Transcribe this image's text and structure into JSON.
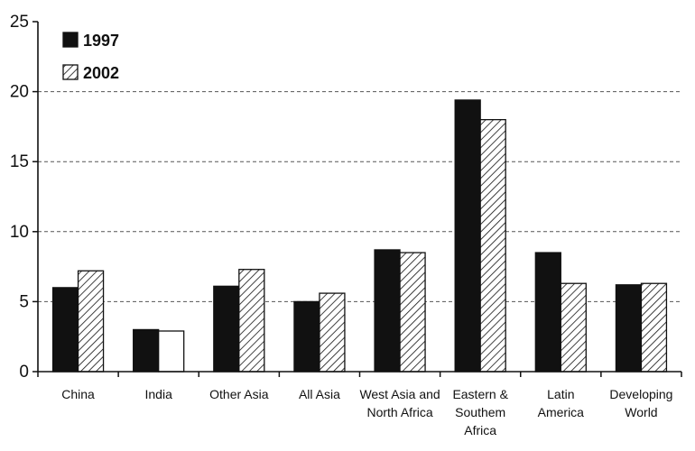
{
  "chart_data": {
    "type": "bar",
    "categories": [
      [
        "China"
      ],
      [
        "India"
      ],
      [
        "Other Asia"
      ],
      [
        "All Asia"
      ],
      [
        "West Asia and",
        "North Africa"
      ],
      [
        "Eastern &",
        "Southem",
        "Africa"
      ],
      [
        "Latin",
        "America"
      ],
      [
        "Developing",
        "World"
      ]
    ],
    "series": [
      {
        "name": "1997",
        "values": [
          6.0,
          3.0,
          6.1,
          5.0,
          8.7,
          19.4,
          8.5,
          6.2
        ],
        "fill": "#111111"
      },
      {
        "name": "2002",
        "values": [
          7.2,
          2.9,
          7.3,
          5.6,
          8.5,
          18.0,
          6.3,
          6.3
        ],
        "fill": "hatch"
      }
    ],
    "white_bars": [
      [
        1,
        1
      ]
    ],
    "ylim": [
      0,
      25
    ],
    "yticks": [
      0,
      5,
      10,
      15,
      20,
      25
    ],
    "grid": "dashed-horizontal",
    "legend_position": "top-left",
    "colors": {
      "dark": "#111111",
      "grid": "#555555",
      "background": "#ffffff"
    }
  }
}
